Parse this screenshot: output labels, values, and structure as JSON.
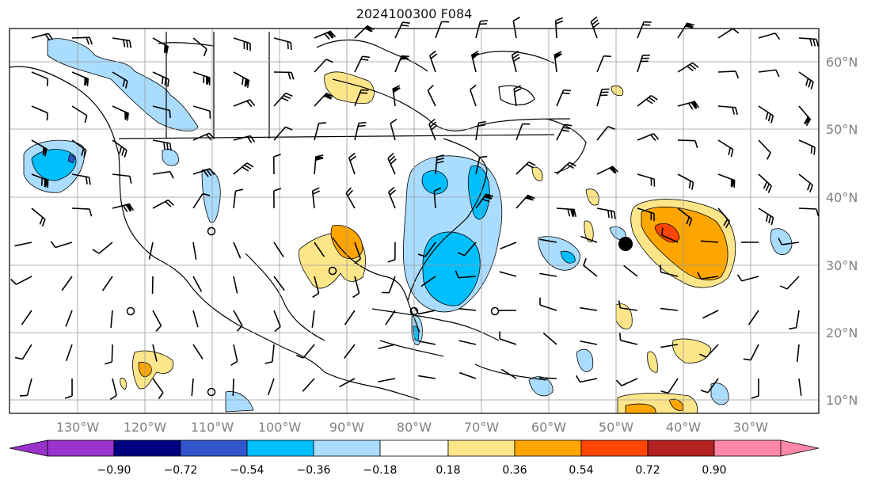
{
  "title": "2024100300 F084",
  "map": {
    "lon_ticks": [
      "130°W",
      "120°W",
      "110°W",
      "100°W",
      "90°W",
      "80°W",
      "70°W",
      "60°W",
      "50°W",
      "40°W",
      "30°W"
    ],
    "lat_ticks": [
      "60°N",
      "50°N",
      "40°N",
      "30°N",
      "20°N",
      "10°N"
    ],
    "grid": true,
    "wind_barbs": true,
    "colors": {
      "grid": "#9a9a9a",
      "tick_label": "#808080"
    }
  },
  "colorbar": {
    "labels": [
      "−0.90",
      "−0.72",
      "−0.54",
      "−0.36",
      "−0.18",
      "0.18",
      "0.36",
      "0.54",
      "0.72",
      "0.90"
    ],
    "colors": [
      "#9933cc",
      "#000080",
      "#3355cc",
      "#00bfff",
      "#aadcff",
      "#ffffff",
      "#fde68a",
      "#ffa500",
      "#ff4500",
      "#b22222",
      "#ff88aa"
    ],
    "extend": "both"
  }
}
